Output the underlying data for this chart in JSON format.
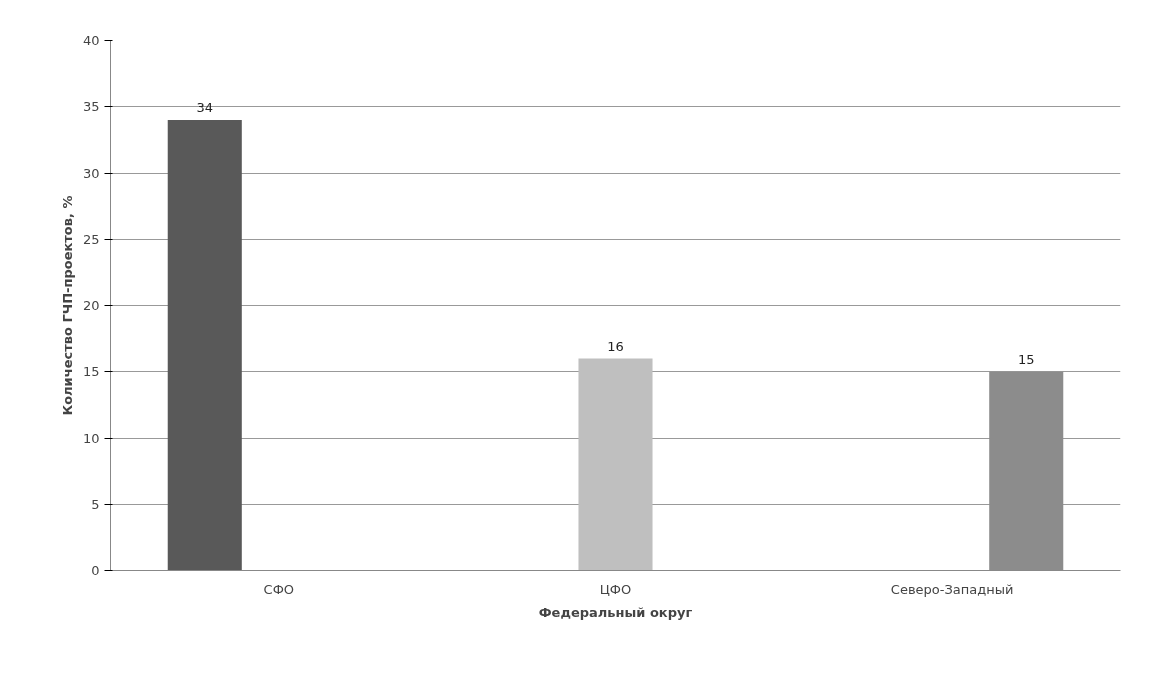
{
  "chart_data": {
    "type": "bar",
    "xlabel": "Федеральный округ",
    "ylabel": "Количество ГЧП-проектов, %",
    "categories": [
      "СФО",
      "ЦФО",
      "Северо-Западный"
    ],
    "series": [
      {
        "color": "#595959",
        "values": [
          34,
          null,
          null
        ]
      },
      {
        "color": "#bfbfbf",
        "values": [
          null,
          16,
          null
        ]
      },
      {
        "color": "#8c8c8c",
        "values": [
          null,
          null,
          15
        ]
      }
    ],
    "ylim": [
      0,
      40
    ],
    "yticks": [
      0,
      5,
      10,
      15,
      20,
      25,
      30,
      35,
      40
    ],
    "grid": "y",
    "data_labels": true
  }
}
